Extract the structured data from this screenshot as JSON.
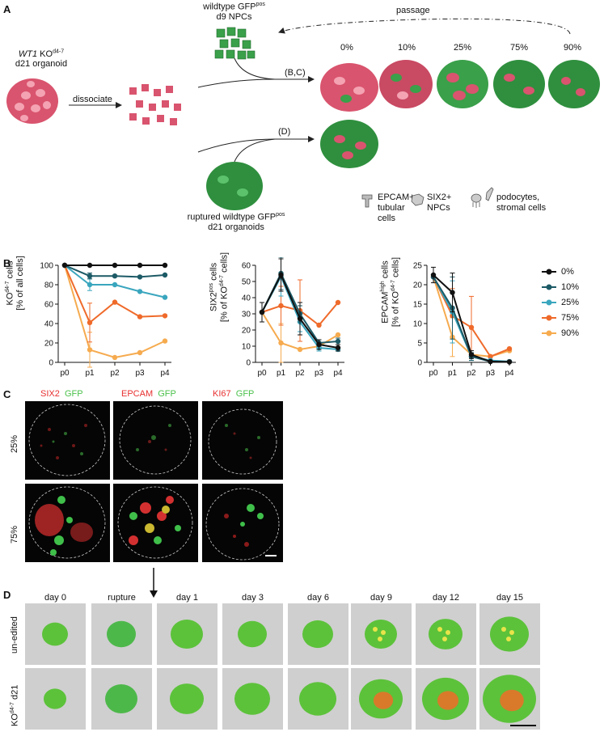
{
  "panelA": {
    "label": "A",
    "ko_line1_a": "WT1",
    "ko_line1_b": " KO",
    "ko_line1_sup": "d4-7",
    "ko_line2": "d21 organoid",
    "dissociate": "dissociate",
    "npc_line1": "wildtype GFP",
    "npc_line1_sup": "pos",
    "npc_line2": "d9 NPCs",
    "passage": "passage",
    "bc": "(B,C)",
    "d": "(D)",
    "percents": [
      "0%",
      "10%",
      "25%",
      "75%",
      "90%"
    ],
    "rupt_line1": "ruptured wildtype GFP",
    "rupt_line1_sup": "pos",
    "rupt_line2": "d21 organoids",
    "legend": [
      "EPCAM+\ntubular\ncells",
      "SIX2+\nNPCs",
      "podocytes,\nstromal cells"
    ]
  },
  "panelB": {
    "label": "B",
    "legend": [
      "0%",
      "10%",
      "25%",
      "75%",
      "90%"
    ],
    "colors": {
      "0%": "#111111",
      "10%": "#1c5a66",
      "25%": "#3aa6be",
      "75%": "#ef6a2a",
      "90%": "#f6ab4f"
    }
  },
  "chart_data": [
    {
      "type": "line",
      "ylabel_main": "KO",
      "ylabel_sup": "d4-7",
      "ylabel_rest": " cells",
      "ylabel2": "[% of all cells]",
      "x": [
        "p0",
        "p1",
        "p2",
        "p3",
        "p4"
      ],
      "ylim": [
        0,
        100
      ],
      "yticks": [
        "0",
        "20",
        "40",
        "60",
        "80",
        "100"
      ],
      "series": [
        {
          "name": "0%",
          "values": [
            100,
            100,
            100,
            100,
            100
          ],
          "err": [
            0,
            0,
            0,
            0,
            0
          ]
        },
        {
          "name": "10%",
          "values": [
            100,
            89,
            89,
            88,
            90
          ],
          "err": [
            0,
            3,
            0,
            0,
            0
          ]
        },
        {
          "name": "25%",
          "values": [
            100,
            80,
            80,
            73,
            67
          ],
          "err": [
            0,
            6,
            0,
            0,
            0
          ]
        },
        {
          "name": "75%",
          "values": [
            100,
            41,
            62,
            47,
            48
          ],
          "err": [
            0,
            20,
            0,
            0,
            0
          ]
        },
        {
          "name": "90%",
          "values": [
            100,
            13,
            5,
            10,
            22
          ],
          "err": [
            0,
            18,
            0,
            0,
            0
          ]
        }
      ]
    },
    {
      "type": "line",
      "ylabel_main": "SIX2",
      "ylabel_sup": "pos",
      "ylabel_rest": " cells",
      "ylabel2_main": "[% of KO",
      "ylabel2_sup": "d4-7",
      "ylabel2_rest": " cells]",
      "x": [
        "p0",
        "p1",
        "p2",
        "p3",
        "p4"
      ],
      "ylim": [
        0,
        60
      ],
      "yticks": [
        "0",
        "10",
        "20",
        "30",
        "40",
        "50",
        "60"
      ],
      "series": [
        {
          "name": "0%",
          "values": [
            31,
            54,
            27,
            11,
            9
          ],
          "err": [
            6,
            10,
            10,
            3,
            2
          ]
        },
        {
          "name": "10%",
          "values": [
            31,
            55,
            30,
            12,
            13
          ],
          "err": [
            0,
            10,
            5,
            2,
            2
          ]
        },
        {
          "name": "25%",
          "values": [
            31,
            53,
            25,
            9,
            8
          ],
          "err": [
            0,
            12,
            6,
            2,
            1
          ]
        },
        {
          "name": "75%",
          "values": [
            31,
            35,
            32,
            23,
            37
          ],
          "err": [
            0,
            12,
            19,
            0,
            0
          ]
        },
        {
          "name": "90%",
          "values": [
            31,
            12,
            8,
            10,
            17
          ],
          "err": [
            0,
            12,
            0,
            0,
            0
          ]
        }
      ]
    },
    {
      "type": "line",
      "ylabel_main": "EPCAM",
      "ylabel_sup": "high",
      "ylabel_rest": " cells",
      "ylabel2_main": "[% of KO",
      "ylabel2_sup": "d4-7",
      "ylabel2_rest": " cells]",
      "x": [
        "p0",
        "p1",
        "p2",
        "p3",
        "p4"
      ],
      "ylim": [
        0,
        25
      ],
      "yticks": [
        "0",
        "5",
        "10",
        "15",
        "20",
        "25"
      ],
      "series": [
        {
          "name": "0%",
          "values": [
            22.5,
            18,
            2,
            0.2,
            0.1
          ],
          "err": [
            2,
            5,
            1,
            0,
            0
          ]
        },
        {
          "name": "10%",
          "values": [
            22,
            14,
            1.5,
            0.2,
            0.2
          ],
          "err": [
            0,
            8,
            1,
            0,
            0
          ]
        },
        {
          "name": "25%",
          "values": [
            22,
            13,
            1.5,
            0.5,
            0.2
          ],
          "err": [
            0,
            8,
            1,
            0,
            0
          ]
        },
        {
          "name": "75%",
          "values": [
            22,
            12,
            9,
            1.5,
            3.5
          ],
          "err": [
            0,
            7,
            8,
            0,
            0
          ]
        },
        {
          "name": "90%",
          "values": [
            22,
            6.5,
            2,
            1.5,
            3
          ],
          "err": [
            0,
            5,
            0,
            0,
            0
          ]
        }
      ]
    }
  ],
  "panelC": {
    "label": "C",
    "headers": [
      {
        "red": "SIX2",
        "green": "GFP"
      },
      {
        "red": "EPCAM",
        "green": "GFP"
      },
      {
        "red": "KI67",
        "green": "GFP"
      }
    ],
    "rows": [
      "25%",
      "75%"
    ],
    "colors": {
      "red": "#e83030",
      "green": "#4cc24c"
    }
  },
  "panelD": {
    "label": "D",
    "days": [
      "day 0",
      "rupture",
      "day 1",
      "day 3",
      "day 6",
      "day 9",
      "day 12",
      "day 15"
    ],
    "row1": "un-edited",
    "row2_main": "KO",
    "row2_sup": "d4-7",
    "row2_rest": " d21"
  }
}
